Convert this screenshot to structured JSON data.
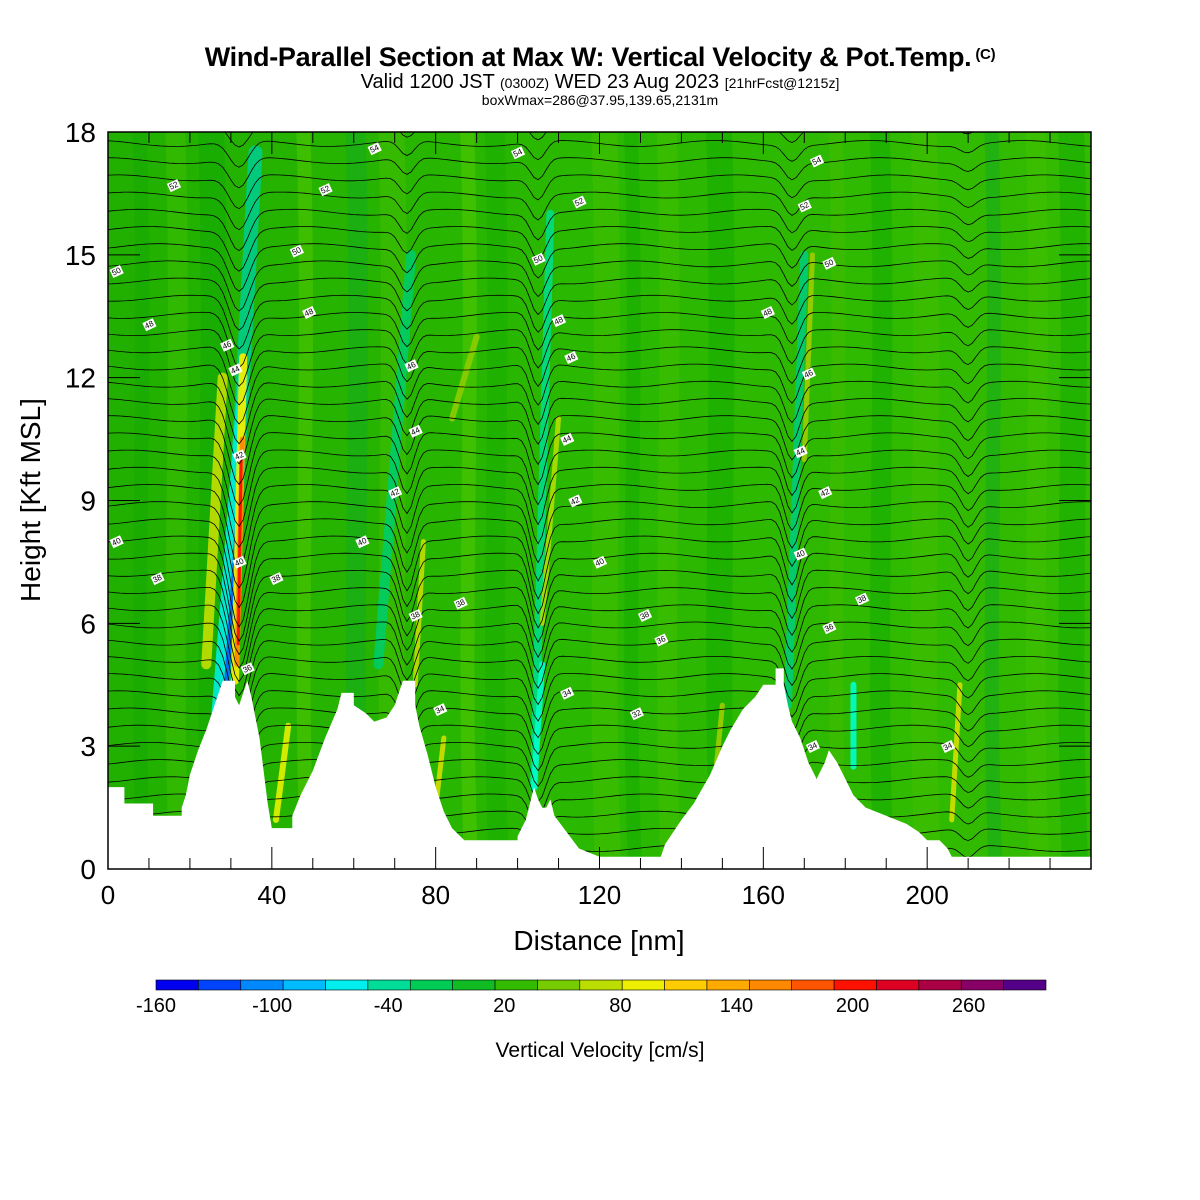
{
  "header": {
    "title": "Wind-Parallel Section at Max W: Vertical Velocity & Pot.Temp.",
    "copyright_mark": "(C)",
    "valid_prefix": "Valid 1200 JST",
    "valid_utc": "(0300Z)",
    "valid_date": "WED 23 Aug 2023",
    "forecast": "[21hrFcst@1215z]",
    "box_info": "boxWmax=286@37.95,139.65,2131m"
  },
  "chart_data": {
    "type": "heatmap",
    "title": "Wind-Parallel Section at Max W: Vertical Velocity & Pot.Temp.",
    "xlabel": "Distance [nm]",
    "ylabel": "Height [Kft MSL]",
    "xlim": [
      0,
      240
    ],
    "ylim": [
      0,
      18
    ],
    "x_ticks": [
      0,
      40,
      80,
      120,
      160,
      200
    ],
    "y_ticks": [
      0,
      3,
      6,
      9,
      12,
      15,
      18
    ],
    "colorbar": {
      "label": "Vertical Velocity [cm/s]",
      "min": -160,
      "max": 300,
      "step": 20,
      "tick_labels": [
        -160,
        -100,
        -40,
        20,
        80,
        140,
        200,
        260
      ],
      "colors": [
        "#0000ee",
        "#0044ff",
        "#0088ff",
        "#00bbff",
        "#00eeee",
        "#00dd99",
        "#00cc55",
        "#11bb22",
        "#33bb00",
        "#77cc00",
        "#bbdd00",
        "#eeee00",
        "#ffcc00",
        "#ffaa00",
        "#ff8800",
        "#ff5500",
        "#ff1100",
        "#dd0022",
        "#aa0044",
        "#880066",
        "#550088"
      ]
    },
    "isentropes": {
      "label_values": [
        34,
        36,
        38,
        40,
        42,
        44,
        46,
        48,
        50,
        52,
        54
      ]
    },
    "terrain": [
      [
        0,
        2.0
      ],
      [
        4,
        2.0
      ],
      [
        4,
        1.6
      ],
      [
        11,
        1.6
      ],
      [
        11,
        1.3
      ],
      [
        18,
        1.3
      ],
      [
        18,
        1.5
      ],
      [
        19,
        1.8
      ],
      [
        20,
        2.3
      ],
      [
        22,
        2.9
      ],
      [
        24,
        3.4
      ],
      [
        26,
        4.0
      ],
      [
        28,
        4.6
      ],
      [
        31,
        4.6
      ],
      [
        31,
        4.2
      ],
      [
        32,
        4.0
      ],
      [
        33,
        4.3
      ],
      [
        34,
        4.6
      ],
      [
        35,
        4.2
      ],
      [
        37,
        3.2
      ],
      [
        38,
        2.4
      ],
      [
        39,
        1.6
      ],
      [
        40,
        1.0
      ],
      [
        45,
        1.0
      ],
      [
        45,
        1.3
      ],
      [
        47,
        1.8
      ],
      [
        50,
        2.4
      ],
      [
        53,
        3.2
      ],
      [
        56,
        3.9
      ],
      [
        57,
        4.3
      ],
      [
        60,
        4.3
      ],
      [
        60,
        4.0
      ],
      [
        63,
        3.8
      ],
      [
        65,
        3.6
      ],
      [
        68,
        3.7
      ],
      [
        70,
        4.0
      ],
      [
        71,
        4.3
      ],
      [
        72,
        4.6
      ],
      [
        75,
        4.6
      ],
      [
        75,
        4.0
      ],
      [
        76,
        3.5
      ],
      [
        78,
        2.8
      ],
      [
        80,
        2.0
      ],
      [
        82,
        1.4
      ],
      [
        84,
        1.0
      ],
      [
        87,
        0.7
      ],
      [
        100,
        0.7
      ],
      [
        100,
        0.8
      ],
      [
        102,
        1.2
      ],
      [
        103,
        1.6
      ],
      [
        104,
        2.0
      ],
      [
        105,
        1.7
      ],
      [
        106,
        1.5
      ],
      [
        107,
        1.5
      ],
      [
        108,
        1.7
      ],
      [
        109,
        1.3
      ],
      [
        112,
        0.9
      ],
      [
        115,
        0.5
      ],
      [
        120,
        0.3
      ],
      [
        135,
        0.3
      ],
      [
        136,
        0.6
      ],
      [
        138,
        0.9
      ],
      [
        140,
        1.2
      ],
      [
        143,
        1.6
      ],
      [
        147,
        2.3
      ],
      [
        150,
        3.0
      ],
      [
        152,
        3.4
      ],
      [
        155,
        3.9
      ],
      [
        158,
        4.2
      ],
      [
        160,
        4.5
      ],
      [
        163,
        4.5
      ],
      [
        163,
        4.9
      ],
      [
        165,
        4.9
      ],
      [
        165,
        4.5
      ],
      [
        166,
        4.0
      ],
      [
        167,
        3.6
      ],
      [
        169,
        3.2
      ],
      [
        171,
        2.6
      ],
      [
        173,
        2.2
      ],
      [
        175,
        2.6
      ],
      [
        176,
        2.9
      ],
      [
        178,
        2.6
      ],
      [
        180,
        2.2
      ],
      [
        182,
        1.8
      ],
      [
        185,
        1.5
      ],
      [
        190,
        1.3
      ],
      [
        195,
        1.1
      ],
      [
        198,
        0.9
      ],
      [
        200,
        0.7
      ],
      [
        203,
        0.7
      ],
      [
        205,
        0.5
      ],
      [
        206,
        0.3
      ],
      [
        240,
        0.3
      ]
    ],
    "colors": {
      "background_fill": "#22bb00",
      "contour": "#000000"
    }
  }
}
